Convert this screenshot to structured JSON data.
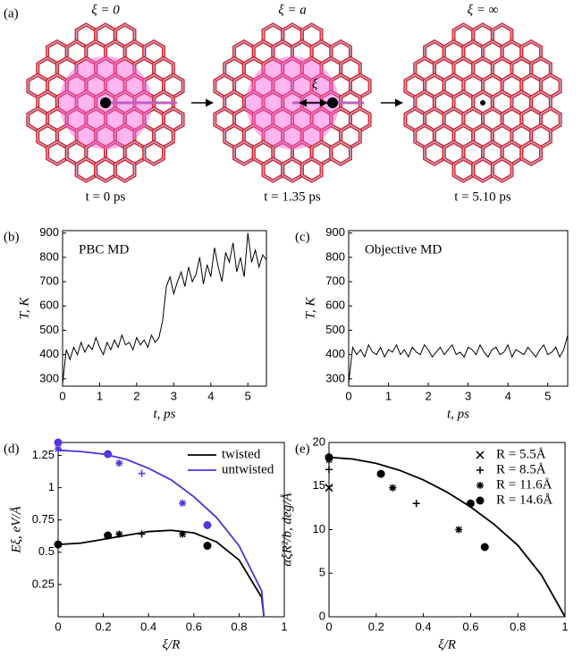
{
  "panel_a": {
    "label": "(a)",
    "frames": [
      {
        "caption_top": "ξ = 0",
        "caption_bottom": "t = 0 ps"
      },
      {
        "caption_top": "ξ = a",
        "caption_bottom": "t = 1.35 ps",
        "marker": "ξ"
      },
      {
        "caption_top": "ξ = ∞",
        "caption_bottom": "t = 5.10 ps"
      }
    ]
  },
  "chart_data": [
    {
      "type": "line",
      "panel": "(b)",
      "annotation": "PBC MD",
      "xlabel": "t, ps",
      "ylabel": "T, K",
      "xlim": [
        0,
        5.5
      ],
      "ylim": [
        270,
        910
      ],
      "xticks": [
        0,
        1,
        2,
        3,
        4,
        5
      ],
      "yticks": [
        300,
        400,
        500,
        600,
        700,
        800,
        900
      ],
      "series": [
        {
          "color": "#000000",
          "x": [
            0,
            0.1,
            0.2,
            0.3,
            0.4,
            0.5,
            0.6,
            0.7,
            0.8,
            0.9,
            1,
            1.1,
            1.2,
            1.3,
            1.4,
            1.5,
            1.6,
            1.7,
            1.8,
            1.9,
            2,
            2.1,
            2.2,
            2.3,
            2.4,
            2.5,
            2.6,
            2.7,
            2.8,
            2.9,
            3,
            3.1,
            3.2,
            3.3,
            3.4,
            3.5,
            3.6,
            3.7,
            3.8,
            3.9,
            4,
            4.1,
            4.2,
            4.3,
            4.4,
            4.5,
            4.6,
            4.7,
            4.8,
            4.9,
            5,
            5.1,
            5.2,
            5.3,
            5.4,
            5.5
          ],
          "values": [
            280,
            420,
            380,
            430,
            400,
            450,
            410,
            440,
            420,
            470,
            430,
            400,
            450,
            420,
            460,
            430,
            480,
            440,
            450,
            420,
            470,
            440,
            460,
            430,
            480,
            450,
            470,
            540,
            680,
            720,
            650,
            700,
            740,
            680,
            760,
            700,
            730,
            800,
            690,
            770,
            720,
            840,
            760,
            700,
            820,
            780,
            860,
            740,
            800,
            720,
            900,
            780,
            830,
            760,
            810,
            790
          ]
        }
      ]
    },
    {
      "type": "line",
      "panel": "(c)",
      "annotation": "Objective MD",
      "xlabel": "t, ps",
      "ylabel": "T, K",
      "xlim": [
        0,
        5.5
      ],
      "ylim": [
        270,
        910
      ],
      "xticks": [
        0,
        1,
        2,
        3,
        4,
        5
      ],
      "yticks": [
        300,
        400,
        500,
        600,
        700,
        800,
        900
      ],
      "series": [
        {
          "color": "#000000",
          "x": [
            0,
            0.1,
            0.2,
            0.3,
            0.4,
            0.5,
            0.6,
            0.7,
            0.8,
            0.9,
            1,
            1.1,
            1.2,
            1.3,
            1.4,
            1.5,
            1.6,
            1.7,
            1.8,
            1.9,
            2,
            2.1,
            2.2,
            2.3,
            2.4,
            2.5,
            2.6,
            2.7,
            2.8,
            2.9,
            3,
            3.1,
            3.2,
            3.3,
            3.4,
            3.5,
            3.6,
            3.7,
            3.8,
            3.9,
            4,
            4.1,
            4.2,
            4.3,
            4.4,
            4.5,
            4.6,
            4.7,
            4.8,
            4.9,
            5,
            5.1,
            5.2,
            5.3,
            5.4,
            5.5
          ],
          "values": [
            280,
            430,
            400,
            420,
            390,
            440,
            410,
            400,
            430,
            390,
            420,
            410,
            440,
            400,
            420,
            390,
            430,
            410,
            400,
            440,
            420,
            390,
            410,
            430,
            400,
            420,
            440,
            400,
            410,
            390,
            430,
            420,
            400,
            440,
            410,
            390,
            420,
            430,
            400,
            410,
            440,
            390,
            420,
            410,
            400,
            430,
            410,
            390,
            420,
            440,
            400,
            410,
            430,
            390,
            420,
            480
          ]
        }
      ]
    },
    {
      "type": "line",
      "panel": "(d)",
      "xlabel": "ξ/R",
      "ylabel": "Eξ, eV/Å",
      "legend": "upper right",
      "xlim": [
        0,
        1
      ],
      "ylim": [
        0,
        1.35
      ],
      "xticks": [
        0,
        0.2,
        0.4,
        0.6,
        0.8,
        1
      ],
      "yticks": [
        0.25,
        0.5,
        0.75,
        1,
        1.25
      ],
      "series": [
        {
          "name": "twisted",
          "color": "#000000",
          "x": [
            0,
            0.1,
            0.2,
            0.3,
            0.4,
            0.5,
            0.6,
            0.7,
            0.8,
            0.9,
            0.91
          ],
          "values": [
            0.56,
            0.57,
            0.6,
            0.63,
            0.66,
            0.67,
            0.65,
            0.58,
            0.44,
            0.15,
            0
          ]
        },
        {
          "name": "untwisted",
          "color": "#4a35d8",
          "x": [
            0,
            0.1,
            0.2,
            0.3,
            0.4,
            0.5,
            0.6,
            0.7,
            0.8,
            0.9,
            0.91
          ],
          "values": [
            1.29,
            1.28,
            1.26,
            1.22,
            1.15,
            1.06,
            0.93,
            0.77,
            0.55,
            0.2,
            0
          ]
        },
        {
          "marker": "circle",
          "color": "#000000",
          "x": [
            0,
            0.22,
            0.66
          ],
          "values": [
            0.56,
            0.63,
            0.55
          ]
        },
        {
          "marker": "asterisk",
          "color": "#000000",
          "x": [
            0.27,
            0.55
          ],
          "values": [
            0.64,
            0.64
          ]
        },
        {
          "marker": "plus",
          "color": "#000000",
          "x": [
            0.37
          ],
          "values": [
            0.64
          ]
        },
        {
          "marker": "circle",
          "color": "#5533dd",
          "x": [
            0,
            0.22,
            0.66
          ],
          "values": [
            1.35,
            1.26,
            0.71
          ]
        },
        {
          "marker": "asterisk",
          "color": "#5533dd",
          "x": [
            0,
            0.27,
            0.55
          ],
          "values": [
            1.3,
            1.19,
            0.88
          ]
        },
        {
          "marker": "plus",
          "color": "#5533dd",
          "x": [
            0.37
          ],
          "values": [
            1.11
          ]
        }
      ]
    },
    {
      "type": "line",
      "panel": "(e)",
      "xlabel": "ξ/R",
      "ylabel": "αξR²/b, deg/Å",
      "legend": "upper right",
      "xlim": [
        0,
        1
      ],
      "ylim": [
        0,
        20
      ],
      "xticks": [
        0,
        0.2,
        0.4,
        0.6,
        0.8,
        1
      ],
      "yticks": [
        0,
        5,
        10,
        15,
        20
      ],
      "series": [
        {
          "color": "#000000",
          "x": [
            0,
            0.1,
            0.2,
            0.3,
            0.4,
            0.5,
            0.6,
            0.7,
            0.8,
            0.9,
            1
          ],
          "values": [
            18.3,
            18.1,
            17.6,
            16.8,
            15.7,
            14.3,
            12.6,
            10.6,
            8.2,
            4.8,
            0
          ]
        },
        {
          "name": "R = 5.5Å",
          "marker": "cross",
          "color": "#000000",
          "x": [
            0
          ],
          "values": [
            14.8
          ]
        },
        {
          "name": "R = 8.5Å",
          "marker": "plus",
          "color": "#000000",
          "x": [
            0,
            0.37
          ],
          "values": [
            16.9,
            13
          ]
        },
        {
          "name": "R = 11.6Å",
          "marker": "asterisk",
          "color": "#000000",
          "x": [
            0,
            0.27,
            0.55
          ],
          "values": [
            18,
            14.8,
            10
          ]
        },
        {
          "name": "R = 14.6Å",
          "marker": "circle",
          "color": "#000000",
          "x": [
            0,
            0.22,
            0.6,
            0.66
          ],
          "values": [
            18.3,
            16.4,
            13,
            8
          ]
        }
      ]
    }
  ]
}
